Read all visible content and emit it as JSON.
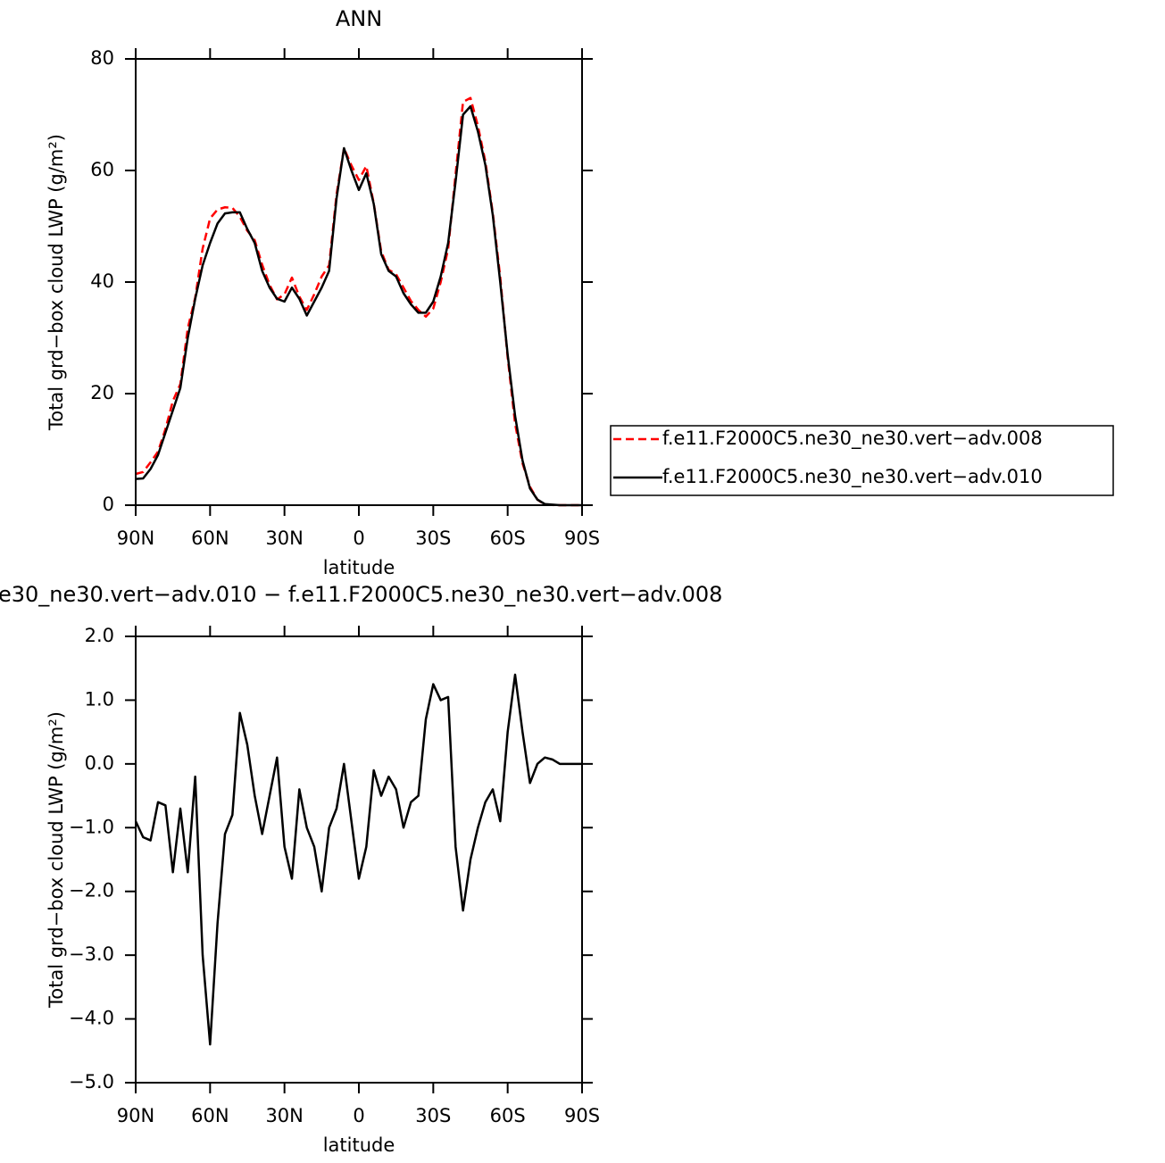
{
  "chart_data": [
    {
      "type": "line",
      "title": "ANN",
      "x_label": "latitude",
      "y_label": "Total grd−box cloud LWP (g/m²)",
      "x": [
        90,
        87,
        84,
        81,
        78,
        75,
        72,
        69,
        66,
        63,
        60,
        57,
        54,
        51,
        48,
        45,
        42,
        39,
        36,
        33,
        30,
        27,
        24,
        21,
        18,
        15,
        12,
        9,
        6,
        3,
        0,
        -3,
        -6,
        -9,
        -12,
        -15,
        -18,
        -21,
        -24,
        -27,
        -30,
        -33,
        -36,
        -39,
        -42,
        -45,
        -48,
        -51,
        -54,
        -57,
        -60,
        -63,
        -66,
        -69,
        -72,
        -75,
        -78,
        -81,
        -84,
        -87,
        -90
      ],
      "series": [
        {
          "name": "f.e11.F2000C5.ne30_ne30.vert−adv.008",
          "color": "#ff0000",
          "line_style": "dashed",
          "values": [
            5.6,
            5.95,
            7.7,
            9.6,
            13.65,
            18.7,
            21.7,
            31.7,
            37.2,
            46,
            51.4,
            53,
            53.4,
            53.3,
            51.7,
            49.2,
            47.5,
            43.1,
            39.5,
            36.9,
            37.8,
            40.8,
            37.4,
            35,
            37.8,
            41,
            43,
            55.7,
            64,
            60.9,
            58.3,
            60.8,
            54.1,
            45.5,
            42.2,
            41.4,
            39,
            36.6,
            35,
            33.8,
            35.25,
            40,
            45.95,
            59.3,
            72.3,
            73,
            68,
            61.6,
            52.4,
            40.9,
            26.5,
            14.6,
            7.5,
            3.3,
            1,
            0.1,
            0.03,
            0,
            0,
            0,
            0
          ]
        },
        {
          "name": "f.e11.F2000C5.ne30_ne30.vert−adv.010",
          "color": "#000000",
          "line_style": "solid",
          "values": [
            4.7,
            4.8,
            6.5,
            9,
            13,
            17,
            21,
            30,
            37,
            43,
            47,
            50.5,
            52.3,
            52.5,
            52.5,
            49.5,
            47,
            42,
            39,
            37,
            36.5,
            39,
            37,
            34,
            36.5,
            39,
            42,
            55,
            64,
            60,
            56.5,
            59.5,
            54,
            45,
            42,
            41,
            38,
            36,
            34.5,
            34.5,
            36.5,
            41,
            47,
            58,
            70,
            71.5,
            67,
            61,
            52,
            40,
            27,
            16,
            8,
            3,
            1,
            0.2,
            0.1,
            0,
            0,
            0,
            0
          ]
        }
      ],
      "xlim": [
        90,
        -90
      ],
      "xticks": [
        {
          "value": 90,
          "label": "90N"
        },
        {
          "value": 60,
          "label": "60N"
        },
        {
          "value": 30,
          "label": "30N"
        },
        0,
        {
          "value": -30,
          "label": "30S"
        },
        {
          "value": -60,
          "label": "60S"
        },
        {
          "value": -90,
          "label": "90S"
        }
      ],
      "ylim": [
        0,
        80
      ],
      "yticks": [
        0,
        20,
        40,
        60,
        80
      ],
      "legend": "right"
    },
    {
      "type": "line",
      "title": "e30_ne30.vert−adv.010 − f.e11.F2000C5.ne30_ne30.vert−adv.008",
      "x_label": "latitude",
      "y_label": "Total grd−box cloud LWP (g/m²)",
      "x": [
        90,
        87,
        84,
        81,
        78,
        75,
        72,
        69,
        66,
        63,
        60,
        57,
        54,
        51,
        48,
        45,
        42,
        39,
        36,
        33,
        30,
        27,
        24,
        21,
        18,
        15,
        12,
        9,
        6,
        3,
        0,
        -3,
        -6,
        -9,
        -12,
        -15,
        -18,
        -21,
        -24,
        -27,
        -30,
        -33,
        -36,
        -39,
        -42,
        -45,
        -48,
        -51,
        -54,
        -57,
        -60,
        -63,
        -66,
        -69,
        -72,
        -75,
        -78,
        -81,
        -84,
        -87,
        -90
      ],
      "series": [
        {
          "color": "#000000",
          "line_style": "solid",
          "values": [
            -0.9,
            -1.15,
            -1.2,
            -0.6,
            -0.65,
            -1.7,
            -0.7,
            -1.7,
            -0.2,
            -3.0,
            -4.4,
            -2.5,
            -1.1,
            -0.8,
            0.8,
            0.3,
            -0.5,
            -1.1,
            -0.5,
            0.1,
            -1.3,
            -1.8,
            -0.4,
            -1.0,
            -1.3,
            -2.0,
            -1.0,
            -0.7,
            0.0,
            -0.9,
            -1.8,
            -1.3,
            -0.1,
            -0.5,
            -0.2,
            -0.4,
            -1.0,
            -0.6,
            -0.5,
            0.7,
            1.25,
            1.0,
            1.05,
            -1.3,
            -2.3,
            -1.5,
            -1.0,
            -0.6,
            -0.4,
            -0.9,
            0.5,
            1.4,
            0.5,
            -0.3,
            0.0,
            0.1,
            0.07,
            0,
            0,
            0,
            0
          ]
        }
      ],
      "xlim": [
        90,
        -90
      ],
      "xticks": [
        {
          "value": 90,
          "label": "90N"
        },
        {
          "value": 60,
          "label": "60N"
        },
        {
          "value": 30,
          "label": "30N"
        },
        0,
        {
          "value": -30,
          "label": "30S"
        },
        {
          "value": -60,
          "label": "60S"
        },
        {
          "value": -90,
          "label": "90S"
        }
      ],
      "ylim": [
        -5,
        2
      ],
      "yticks": [
        {
          "value": 2,
          "label": "2.0"
        },
        {
          "value": 1,
          "label": "1.0"
        },
        {
          "value": 0,
          "label": "0.0"
        },
        {
          "value": -1,
          "label": "−1.0"
        },
        {
          "value": -2,
          "label": "−2.0"
        },
        {
          "value": -3,
          "label": "−3.0"
        },
        {
          "value": -4,
          "label": "−4.0"
        },
        {
          "value": -5,
          "label": "−5.0"
        }
      ]
    }
  ]
}
